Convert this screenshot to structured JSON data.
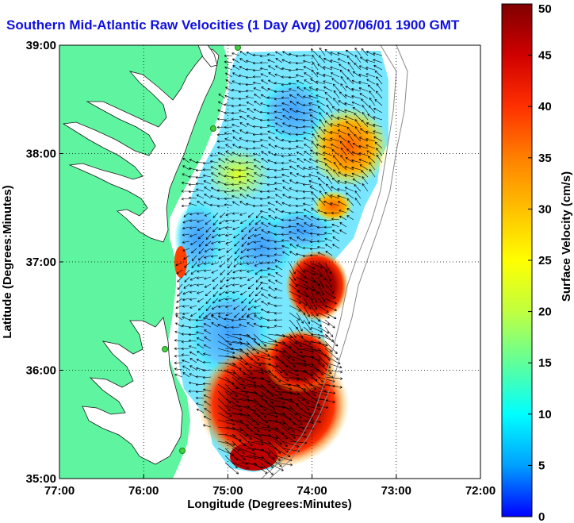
{
  "title": "Southern Mid-Atlantic Raw Velocities (1 Day Avg) 2007/06/01 1900 GMT",
  "x_axis": {
    "label": "Longitude (Degrees:Minutes)",
    "ticks": [
      "77:00",
      "76:00",
      "75:00",
      "74:00",
      "73:00",
      "72:00"
    ]
  },
  "y_axis": {
    "label": "Latitude (Degrees:Minutes)",
    "ticks": [
      "39:00",
      "38:00",
      "37:00",
      "36:00",
      "35:00"
    ]
  },
  "colorbar": {
    "label": "Surface Velocity (cm/s)",
    "ticks": [
      "50",
      "45",
      "40",
      "35",
      "30",
      "25",
      "20",
      "15",
      "10",
      "5",
      "0"
    ],
    "range": [
      0,
      50
    ],
    "colors": [
      "#0000ff",
      "#00a0ff",
      "#00ffff",
      "#60ff9a",
      "#c0ff40",
      "#ffff00",
      "#ffc000",
      "#ff8000",
      "#ff3000",
      "#d00000",
      "#800000"
    ]
  },
  "extent": {
    "lon": [
      -77,
      -72
    ],
    "lat": [
      35,
      39
    ]
  },
  "land_color": "#5ff5a0",
  "grid": true
}
